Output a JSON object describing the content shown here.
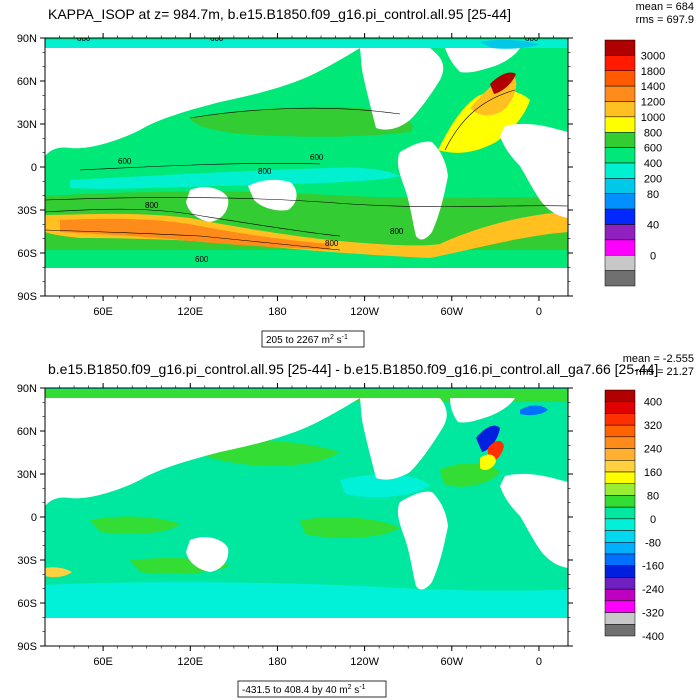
{
  "chart_data": [
    {
      "type": "heatmap",
      "title": "KAPPA_ISOP at z= 984.7m, b.e15.B1850.f09_g16.pi_control.all.95 [25-44]",
      "stats": {
        "mean": "mean = 684",
        "rms": "rms = 697.9"
      },
      "range_label_prefix": "205 to 2267 m",
      "range_label_exp": "2",
      "range_label_mid": " s",
      "range_label_exp2": "-1",
      "x_ticks": [
        "60E",
        "120E",
        "180",
        "120W",
        "60W",
        "0"
      ],
      "y_ticks": [
        "90N",
        "60N",
        "30N",
        "0",
        "30S",
        "60S",
        "90S"
      ],
      "colorbar": {
        "levels": [
          "3000",
          "1800",
          "1400",
          "1200",
          "1000",
          "800",
          "600",
          "400",
          "200",
          "80",
          "40",
          "0"
        ],
        "colors": [
          "#b00000",
          "#ff1a00",
          "#ff5a00",
          "#ff8c1a",
          "#ffc020",
          "#ffff00",
          "#33cc33",
          "#00e878",
          "#00f0d0",
          "#00c8e8",
          "#0090ff",
          "#0028ff",
          "#9020c0",
          "#ff00ff",
          "#c8c8c8",
          "#707070"
        ]
      },
      "contour_labels": [
        "600",
        "600",
        "600",
        "800",
        "800",
        "800",
        "600",
        "600",
        "800",
        "600"
      ]
    },
    {
      "type": "heatmap",
      "title": "b.e15.B1850.f09_g16.pi_control.all.95 [25-44] - b.e15.B1850.f09_g16.pi_control.all_ga7.66 [25-44]",
      "stats": {
        "mean": "mean = -2.555",
        "rms": "rms = 21.27"
      },
      "range_label_prefix": "-431.5 to 408.4 by 40 m",
      "range_label_exp": "2",
      "range_label_mid": " s",
      "range_label_exp2": "-1",
      "x_ticks": [
        "60E",
        "120E",
        "180",
        "120W",
        "60W",
        "0"
      ],
      "y_ticks": [
        "90N",
        "60N",
        "30N",
        "0",
        "30S",
        "60S",
        "90S"
      ],
      "colorbar": {
        "levels": [
          "400",
          "320",
          "280",
          "240",
          "200",
          "160",
          "120",
          "80",
          "40",
          "0",
          "-40",
          "-80",
          "-120",
          "-160",
          "-200",
          "-240",
          "-280",
          "-320",
          "-360",
          "-400"
        ],
        "shown_levels": [
          "400",
          "320",
          "240",
          "160",
          "80",
          "0",
          "-80",
          "-160",
          "-240",
          "-320",
          "-400"
        ],
        "colors": [
          "#b00000",
          "#e00000",
          "#ff3000",
          "#ff6400",
          "#ff8c1a",
          "#ffb030",
          "#ffd040",
          "#ffff00",
          "#99ee33",
          "#33dd33",
          "#00e8a0",
          "#00f0d8",
          "#00d8f0",
          "#00b0ff",
          "#0070ff",
          "#0020e0",
          "#7020c0",
          "#c000c0",
          "#ff00ff",
          "#c8c8c8",
          "#707070"
        ]
      }
    }
  ]
}
